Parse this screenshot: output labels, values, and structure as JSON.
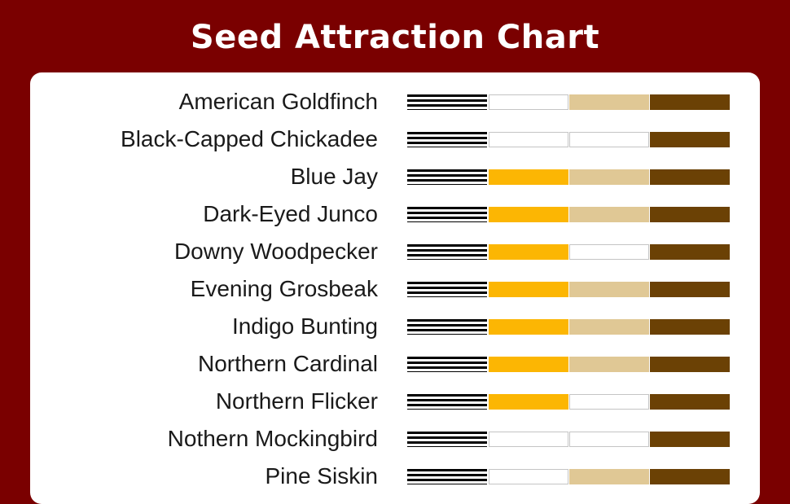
{
  "title": "Seed Attraction Chart",
  "colors": {
    "background": "#7a0000",
    "panel": "#ffffff",
    "column_colors": [
      "striped-black",
      "#fcb603",
      "#e0c895",
      "#6b4105"
    ],
    "empty": "#ffffff"
  },
  "chart_data": {
    "type": "table",
    "title": "Seed Attraction Chart",
    "columns": 4,
    "legend": "none visible",
    "rows": [
      {
        "bird": "American Goldfinch",
        "attracted": [
          true,
          false,
          true,
          true
        ]
      },
      {
        "bird": "Black-Capped Chickadee",
        "attracted": [
          true,
          false,
          false,
          true
        ]
      },
      {
        "bird": "Blue Jay",
        "attracted": [
          true,
          true,
          true,
          true
        ]
      },
      {
        "bird": "Dark-Eyed Junco",
        "attracted": [
          true,
          true,
          true,
          true
        ]
      },
      {
        "bird": "Downy Woodpecker",
        "attracted": [
          true,
          true,
          false,
          true
        ]
      },
      {
        "bird": "Evening Grosbeak",
        "attracted": [
          true,
          true,
          true,
          true
        ]
      },
      {
        "bird": "Indigo Bunting",
        "attracted": [
          true,
          true,
          true,
          true
        ]
      },
      {
        "bird": "Northern Cardinal",
        "attracted": [
          true,
          true,
          true,
          true
        ]
      },
      {
        "bird": "Northern Flicker",
        "attracted": [
          true,
          true,
          false,
          true
        ]
      },
      {
        "bird": "Nothern Mockingbird",
        "attracted": [
          true,
          false,
          false,
          true
        ]
      },
      {
        "bird": "Pine Siskin",
        "attracted": [
          true,
          false,
          true,
          true
        ]
      }
    ]
  }
}
